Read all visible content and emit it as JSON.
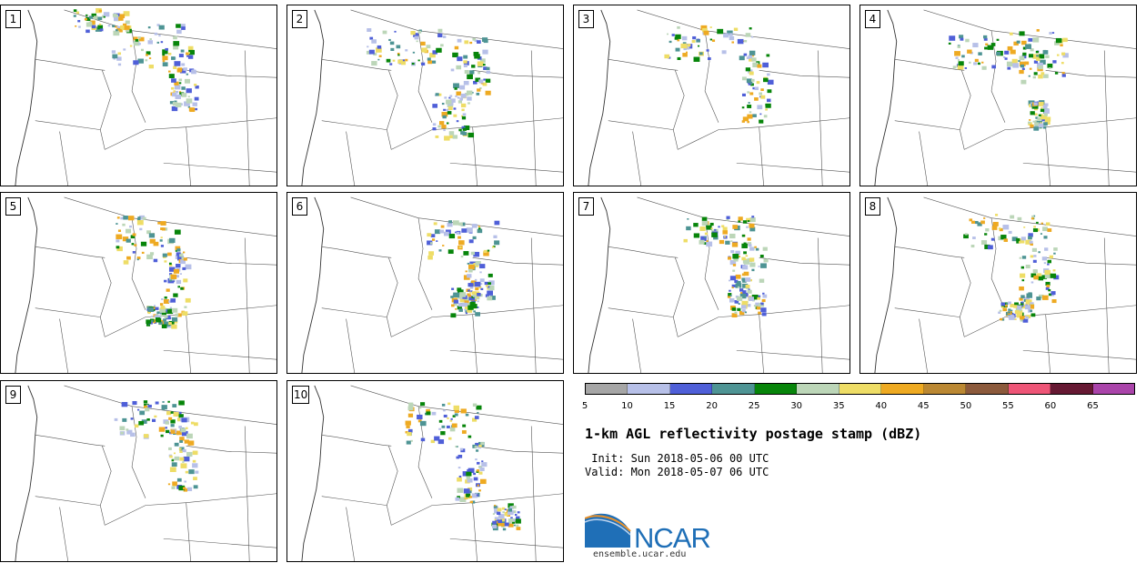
{
  "panels": [
    {
      "label": "1"
    },
    {
      "label": "2"
    },
    {
      "label": "3"
    },
    {
      "label": "4"
    },
    {
      "label": "5"
    },
    {
      "label": "6"
    },
    {
      "label": "7"
    },
    {
      "label": "8"
    },
    {
      "label": "9"
    },
    {
      "label": "10"
    }
  ],
  "colorbar": {
    "colors": [
      "#a6a6a6",
      "#b7c0e8",
      "#4f5fd8",
      "#4e9494",
      "#07850a",
      "#bcd6b8",
      "#eedd66",
      "#eeaa22",
      "#bb8833",
      "#8c5a3c",
      "#ee5577",
      "#661933",
      "#aa44aa"
    ],
    "ticks": [
      "5",
      "10",
      "15",
      "20",
      "25",
      "30",
      "35",
      "40",
      "45",
      "50",
      "55",
      "60",
      "65"
    ]
  },
  "title": "1-km AGL reflectivity postage stamp (dBZ)",
  "init": " Init: Sun 2018-05-06 00 UTC",
  "valid": "Valid: Mon 2018-05-07 06 UTC",
  "logo": {
    "text": "NCAR",
    "url": "ensemble.ucar.edu",
    "brand_color": "#1f6fb7"
  }
}
